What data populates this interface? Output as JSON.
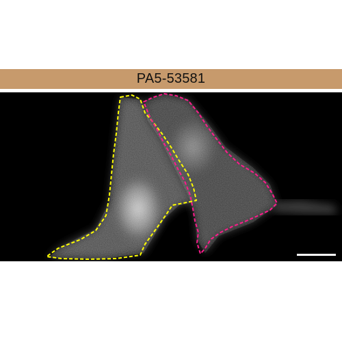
{
  "figure": {
    "antibody_label": "PA5-53581",
    "label_bar_color": "#c79a6c",
    "outline_colors": {
      "cell_left": "#ffff00",
      "cell_right": "#ff1a8c"
    },
    "scale_bar_color": "#ffffff"
  }
}
